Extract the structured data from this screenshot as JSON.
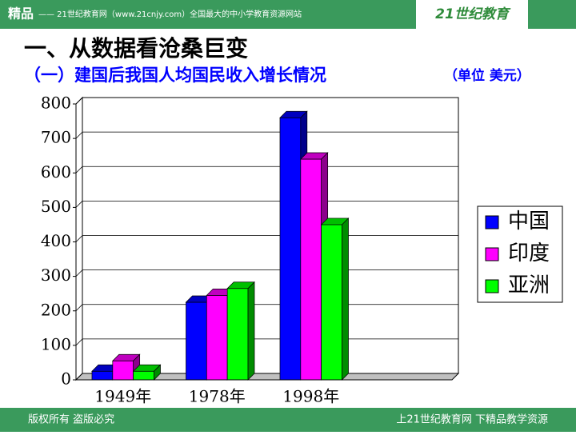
{
  "slide": {
    "header_brand": "精品",
    "header_text": "—— 21世纪教育网（www.21cnjy.com）全国最大的中小学教育资源网站",
    "logo": "21世纪教育",
    "heading": "一、从数据看沧桑巨变",
    "footer_left": "版权所有  盗版必究",
    "footer_right": "上21世纪教育网    下精品教学资源"
  },
  "chart_data": {
    "type": "bar3d",
    "title": "（一）建国后我国人均国民收入增长情况",
    "subtitle": "（单位 美元）",
    "categories": [
      "1949年",
      "1978年",
      "1998年",
      null
    ],
    "series": [
      {
        "name": "中国",
        "color": "#0000ff",
        "values": [
          25,
          225,
          760,
          null
        ]
      },
      {
        "name": "印度",
        "color": "#ff00ff",
        "values": [
          55,
          245,
          640,
          null
        ]
      },
      {
        "name": "亚洲",
        "color": "#00ff00",
        "values": [
          25,
          265,
          450,
          null
        ]
      }
    ],
    "ylim": [
      0,
      800
    ],
    "yticks": [
      0,
      100,
      200,
      300,
      400,
      500,
      600,
      700,
      800
    ],
    "grid": true,
    "legend": "right"
  }
}
